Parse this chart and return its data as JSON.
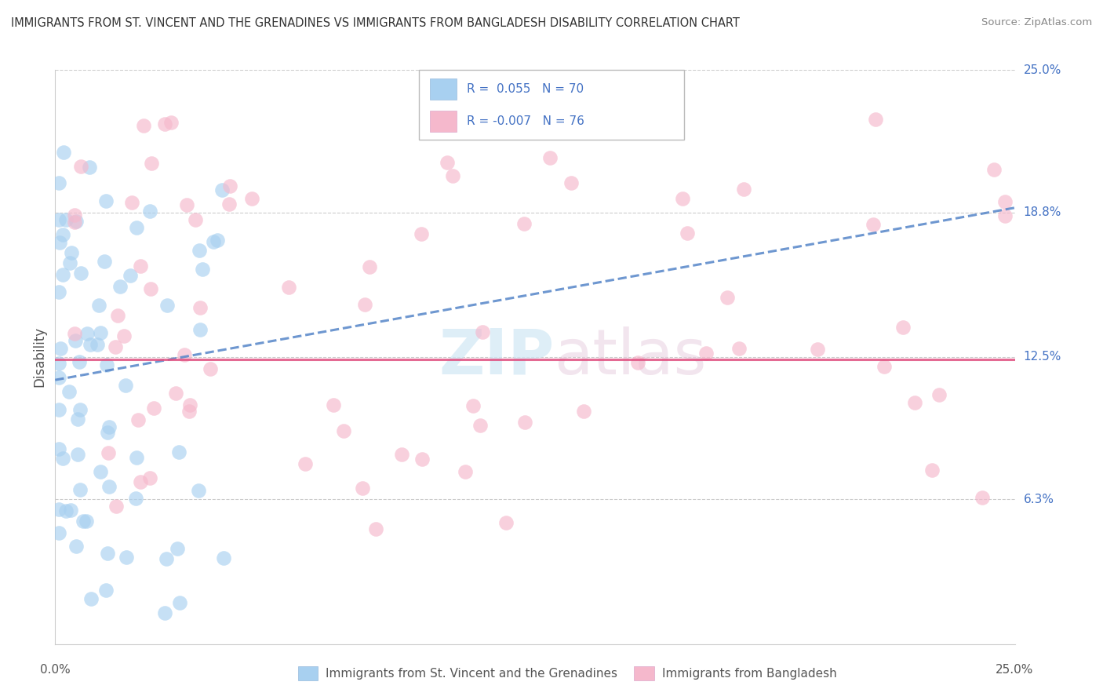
{
  "title": "IMMIGRANTS FROM ST. VINCENT AND THE GRENADINES VS IMMIGRANTS FROM BANGLADESH DISABILITY CORRELATION CHART",
  "source": "Source: ZipAtlas.com",
  "ylabel": "Disability",
  "xlim": [
    0.0,
    0.25
  ],
  "ylim": [
    0.0,
    0.25
  ],
  "yticks": [
    0.063,
    0.125,
    0.188,
    0.25
  ],
  "ytick_labels": [
    "6.3%",
    "12.5%",
    "18.8%",
    "25.0%"
  ],
  "watermark_line1": "ZIP",
  "watermark_line2": "atlas",
  "legend": {
    "series1_label": "Immigrants from St. Vincent and the Grenadines",
    "series2_label": "Immigrants from Bangladesh",
    "R1": " 0.055",
    "N1": "70",
    "R2": "-0.007",
    "N2": "76"
  },
  "color1": "#a8d0f0",
  "color2": "#f5b8cc",
  "line1_color": "#5585c8",
  "line2_color": "#e05080",
  "background": "#ffffff",
  "grid_color": "#cccccc"
}
